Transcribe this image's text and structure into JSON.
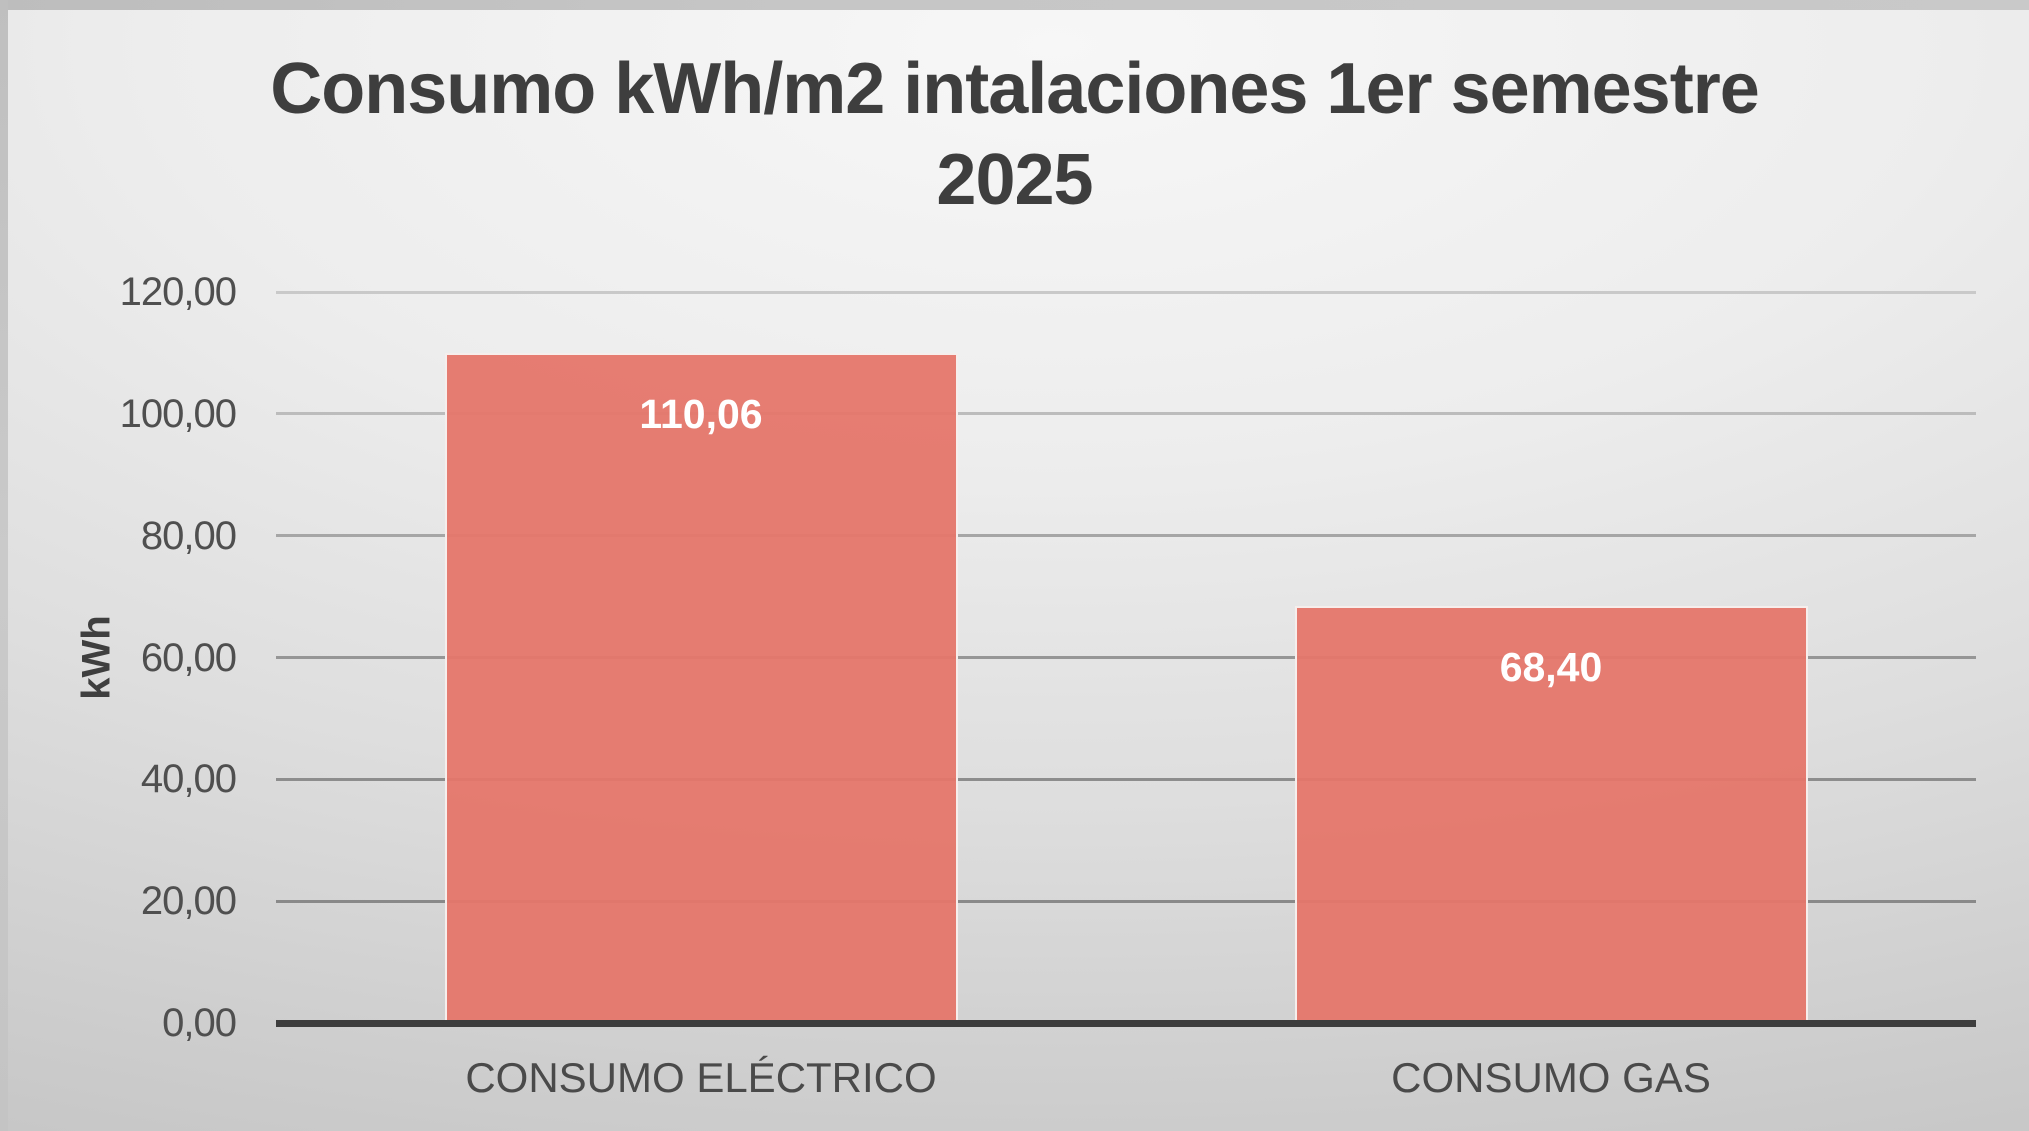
{
  "title": {
    "line1": "Consumo kWh/m2 intalaciones 1er semestre",
    "line2": "2025"
  },
  "chart_data": {
    "type": "bar",
    "title": "Consumo kWh/m2 intalaciones 1er semestre 2025",
    "categories": [
      "CONSUMO ELÉCTRICO",
      "CONSUMO GAS"
    ],
    "values": [
      110.06,
      68.4
    ],
    "value_labels": [
      "110,06",
      "68,40"
    ],
    "xlabel": "",
    "ylabel": "kWh",
    "ylim": [
      0,
      120
    ],
    "ytick_step": 20,
    "yticks": [
      {
        "value": 0,
        "label": "0,00",
        "grid_color": null
      },
      {
        "value": 20,
        "label": "20,00",
        "grid_color": "#898989"
      },
      {
        "value": 40,
        "label": "40,00",
        "grid_color": "#8d8d8d"
      },
      {
        "value": 60,
        "label": "60,00",
        "grid_color": "#969696"
      },
      {
        "value": 80,
        "label": "80,00",
        "grid_color": "#a6a6a6"
      },
      {
        "value": 100,
        "label": "100,00",
        "grid_color": "#bcbcbc"
      },
      {
        "value": 120,
        "label": "120,00",
        "grid_color": "#c9c9c9"
      }
    ],
    "grid": true,
    "legend": false,
    "colors": {
      "bar_fill": "rgba(229,118,106,0.95)",
      "bar_border": "#f6eeec",
      "value_label": "#ffffff",
      "axis_line": "#3d3d3d",
      "title_text": "#3e3e3e",
      "tick_text": "#4f4f4f",
      "category_text": "#4a4a4a",
      "background_light": "#f7f7f7",
      "background_dark": "#c1c1c1"
    }
  }
}
